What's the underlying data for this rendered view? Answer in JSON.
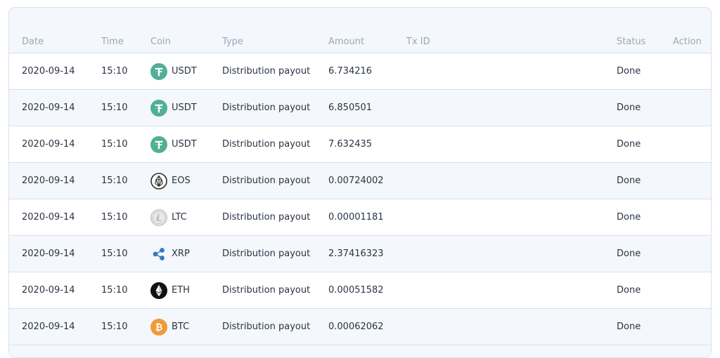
{
  "table": {
    "headers": {
      "date": "Date",
      "time": "Time",
      "coin": "Coin",
      "type": "Type",
      "amount": "Amount",
      "txid": "Tx ID",
      "status": "Status",
      "action": "Action"
    },
    "rows": [
      {
        "date": "2020-09-14",
        "time": "15:10",
        "coin": "USDT",
        "icon": "tether-icon",
        "type": "Distribution payout",
        "amount": "6.734216",
        "txid": "",
        "status": "Done",
        "action": ""
      },
      {
        "date": "2020-09-14",
        "time": "15:10",
        "coin": "USDT",
        "icon": "tether-icon",
        "type": "Distribution payout",
        "amount": "6.850501",
        "txid": "",
        "status": "Done",
        "action": ""
      },
      {
        "date": "2020-09-14",
        "time": "15:10",
        "coin": "USDT",
        "icon": "tether-icon",
        "type": "Distribution payout",
        "amount": "7.632435",
        "txid": "",
        "status": "Done",
        "action": ""
      },
      {
        "date": "2020-09-14",
        "time": "15:10",
        "coin": "EOS",
        "icon": "eos-icon",
        "type": "Distribution payout",
        "amount": "0.00724002",
        "txid": "",
        "status": "Done",
        "action": ""
      },
      {
        "date": "2020-09-14",
        "time": "15:10",
        "coin": "LTC",
        "icon": "litecoin-icon",
        "type": "Distribution payout",
        "amount": "0.00001181",
        "txid": "",
        "status": "Done",
        "action": ""
      },
      {
        "date": "2020-09-14",
        "time": "15:10",
        "coin": "XRP",
        "icon": "ripple-icon",
        "type": "Distribution payout",
        "amount": "2.37416323",
        "txid": "",
        "status": "Done",
        "action": ""
      },
      {
        "date": "2020-09-14",
        "time": "15:10",
        "coin": "ETH",
        "icon": "ethereum-icon",
        "type": "Distribution payout",
        "amount": "0.00051582",
        "txid": "",
        "status": "Done",
        "action": ""
      },
      {
        "date": "2020-09-14",
        "time": "15:10",
        "coin": "BTC",
        "icon": "bitcoin-icon",
        "type": "Distribution payout",
        "amount": "0.00062062",
        "txid": "",
        "status": "Done",
        "action": ""
      }
    ]
  },
  "colors": {
    "header_text": "#9aa8b8",
    "body_text": "#2a3444",
    "row_alt": "#f4f7fc",
    "border": "#d7e0ea",
    "tether": "#50af95",
    "bitcoin": "#f09a38"
  }
}
